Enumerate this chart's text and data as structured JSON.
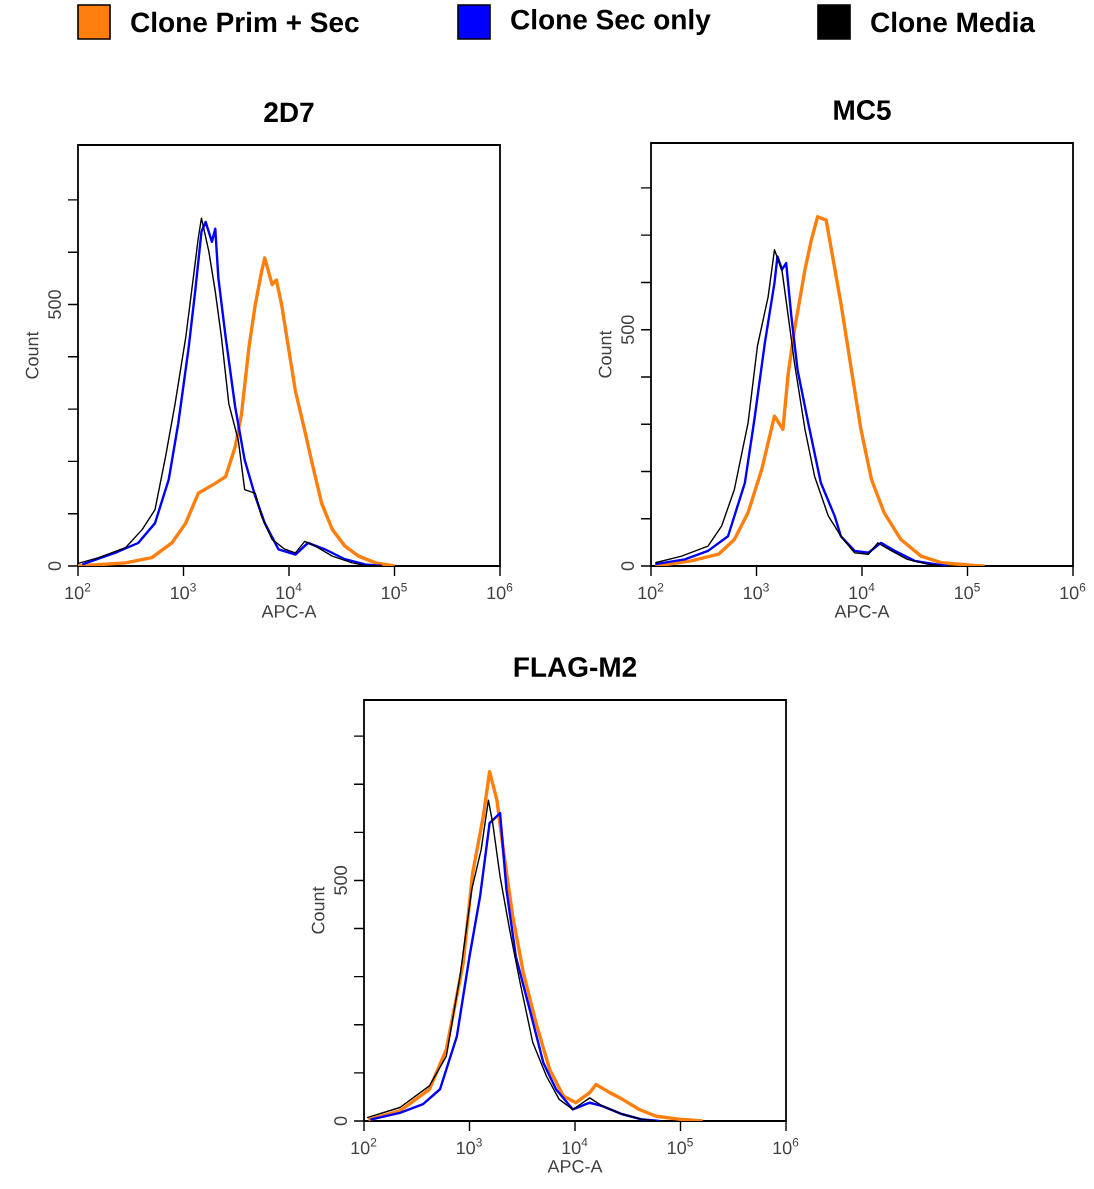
{
  "chart_data": [
    {
      "type": "line",
      "title": "2D7",
      "xlabel": "APC-A",
      "ylabel": "Count",
      "log": "x",
      "legend": "top",
      "xlim": [
        100,
        1000000
      ],
      "ylim": [
        0,
        805
      ],
      "xticks": [
        {
          "value": 100,
          "label": "10$^{2}$"
        },
        {
          "value": 1000,
          "label": "10$^{3}$"
        },
        {
          "value": 10000,
          "label": "10$^{4}$"
        },
        {
          "value": 100000,
          "label": "10$^{5}$"
        },
        {
          "value": 1000000,
          "label": "10$^{6}$"
        }
      ],
      "yticks": [
        0,
        {
          "value": 100,
          "label": null
        },
        {
          "value": 200,
          "label": null
        },
        {
          "value": 300,
          "label": null
        },
        {
          "value": 400,
          "label": null
        },
        500,
        {
          "value": 600,
          "label": null
        },
        {
          "value": 700,
          "label": null
        }
      ],
      "series": [
        {
          "name": "Clone Prim + Sec",
          "color": "#ff7f0e",
          "x": [
            100,
            282,
            501,
            776,
            1050,
            1380,
            2000,
            2510,
            3090,
            3550,
            4170,
            4790,
            5500,
            5890,
            6920,
            7590,
            8510,
            9770,
            11500,
            14100,
            16600,
            20400,
            25700,
            33900,
            45700,
            66100,
            100000
          ],
          "values": [
            0,
            6,
            16,
            44,
            82,
            139,
            158,
            171,
            228,
            291,
            418,
            500,
            563,
            589,
            538,
            547,
            500,
            424,
            335,
            259,
            196,
            120,
            70,
            38,
            19,
            6,
            0
          ]
        },
        {
          "name": "Clone Sec only",
          "color": "#0000ff",
          "x": [
            110,
            224,
            372,
            537,
            724,
            891,
            1120,
            1290,
            1480,
            1620,
            1860,
            2000,
            2140,
            2510,
            3090,
            3800,
            4790,
            5890,
            7940,
            11500,
            15100,
            21900,
            33900,
            52500,
            75900
          ],
          "values": [
            3,
            25,
            44,
            82,
            165,
            272,
            418,
            525,
            639,
            658,
            620,
            645,
            551,
            437,
            304,
            203,
            133,
            82,
            32,
            22,
            44,
            32,
            13,
            3,
            0
          ]
        },
        {
          "name": "Clone Media",
          "color": "#000000",
          "x": [
            100,
            157,
            282,
            407,
            537,
            676,
            832,
            1050,
            1260,
            1380,
            1480,
            1740,
            2000,
            2290,
            2690,
            3310,
            3800,
            4790,
            5500,
            6920,
            9120,
            11500,
            14100,
            17800,
            25700,
            39800,
            52500,
            75900
          ],
          "values": [
            5,
            16,
            35,
            70,
            108,
            209,
            310,
            437,
            563,
            627,
            665,
            601,
            525,
            437,
            310,
            240,
            146,
            139,
            95,
            51,
            32,
            25,
            47,
            38,
            19,
            6,
            1,
            0
          ]
        }
      ]
    },
    {
      "type": "line",
      "title": "MC5",
      "xlabel": "APC-A",
      "ylabel": "Count",
      "log": "x",
      "xlim": [
        100,
        1000000
      ],
      "ylim": [
        0,
        895
      ],
      "xticks": [
        {
          "value": 100,
          "label": "10$^{2}$"
        },
        {
          "value": 1000,
          "label": "10$^{3}$"
        },
        {
          "value": 10000,
          "label": "10$^{4}$"
        },
        {
          "value": 100000,
          "label": "10$^{5}$"
        },
        {
          "value": 1000000,
          "label": "10$^{6}$"
        }
      ],
      "yticks": [
        0,
        {
          "value": 100,
          "label": null
        },
        {
          "value": 200,
          "label": null
        },
        {
          "value": 300,
          "label": null
        },
        {
          "value": 400,
          "label": null
        },
        500,
        {
          "value": 600,
          "label": null
        },
        {
          "value": 700,
          "label": null
        },
        {
          "value": 800,
          "label": null
        }
      ],
      "series": [
        {
          "color": "#ff7f0e",
          "x": [
            110,
            240,
            437,
            617,
            832,
            1120,
            1480,
            1780,
            2000,
            2290,
            2880,
            3310,
            3800,
            4570,
            5130,
            6310,
            7940,
            9770,
            12300,
            16200,
            23400,
            36300,
            56200,
            115000,
            145000
          ],
          "values": [
            0,
            11,
            25,
            56,
            113,
            204,
            317,
            289,
            408,
            500,
            627,
            690,
            739,
            732,
            669,
            556,
            415,
            289,
            183,
            113,
            56,
            21,
            7,
            1,
            0
          ]
        },
        {
          "color": "#0000ff",
          "x": [
            110,
            209,
            347,
            537,
            776,
            955,
            1200,
            1480,
            1580,
            1740,
            1910,
            2140,
            2450,
            3090,
            4070,
            5500,
            6310,
            8510,
            11500,
            15100,
            20400,
            31600,
            49000,
            64600
          ],
          "values": [
            4,
            14,
            32,
            63,
            176,
            310,
            472,
            599,
            655,
            627,
            641,
            528,
            415,
            303,
            176,
            106,
            63,
            32,
            28,
            49,
            32,
            11,
            4,
            0
          ]
        },
        {
          "color": "#000000",
          "x": [
            110,
            195,
            347,
            468,
            617,
            832,
            1020,
            1290,
            1480,
            1740,
            2000,
            2290,
            2880,
            3550,
            4790,
            6310,
            8510,
            11500,
            14100,
            19100,
            26900,
            41700,
            56200
          ],
          "values": [
            7,
            21,
            42,
            85,
            162,
            303,
            465,
            570,
            669,
            627,
            528,
            430,
            289,
            190,
            106,
            63,
            28,
            25,
            49,
            32,
            14,
            4,
            0
          ]
        }
      ]
    },
    {
      "type": "line",
      "title": "FLAG-M2",
      "xlabel": "APC-A",
      "ylabel": "Count",
      "log": "x",
      "xlim": [
        100,
        1000000
      ],
      "ylim": [
        0,
        875
      ],
      "xticks": [
        {
          "value": 100,
          "label": "10$^{2}$"
        },
        {
          "value": 1000,
          "label": "10$^{3}$"
        },
        {
          "value": 10000,
          "label": "10$^{4}$"
        },
        {
          "value": 100000,
          "label": "10$^{5}$"
        },
        {
          "value": 1000000,
          "label": "10$^{6}$"
        }
      ],
      "yticks": [
        0,
        {
          "value": 100,
          "label": null
        },
        {
          "value": 200,
          "label": null
        },
        {
          "value": 300,
          "label": null
        },
        {
          "value": 400,
          "label": null
        },
        500,
        {
          "value": 600,
          "label": null
        },
        {
          "value": 700,
          "label": null
        },
        {
          "value": 800,
          "label": null
        }
      ],
      "series": [
        {
          "color": "#ff7f0e",
          "x": [
            110,
            219,
            417,
            603,
            871,
            1070,
            1350,
            1550,
            1820,
            2090,
            2570,
            3240,
            4270,
            5750,
            7760,
            10200,
            13800,
            15800,
            21400,
            28200,
            40700,
            58900,
            105000,
            162000
          ],
          "values": [
            3,
            21,
            66,
            149,
            328,
            515,
            633,
            726,
            667,
            564,
            425,
            308,
            204,
            107,
            52,
            38,
            59,
            76,
            59,
            45,
            24,
            10,
            3,
            0
          ]
        },
        {
          "color": "#0000ff",
          "x": [
            115,
            219,
            363,
            525,
            759,
            1000,
            1260,
            1550,
            1950,
            2240,
            2750,
            3720,
            5010,
            6610,
            9550,
            13800,
            18200,
            28200,
            43700,
            63100
          ],
          "values": [
            3,
            17,
            35,
            66,
            176,
            342,
            467,
            619,
            640,
            481,
            342,
            232,
            121,
            66,
            24,
            38,
            31,
            14,
            3,
            0
          ]
        },
        {
          "color": "#000000",
          "x": [
            107,
            219,
            417,
            603,
            813,
            1050,
            1290,
            1510,
            1660,
            1950,
            2400,
            3020,
            3980,
            5370,
            7080,
            9550,
            13800,
            18200,
            28200,
            43700,
            58900
          ],
          "values": [
            7,
            28,
            73,
            135,
            301,
            481,
            564,
            667,
            619,
            508,
            398,
            287,
            163,
            93,
            45,
            24,
            48,
            31,
            14,
            3,
            0
          ]
        }
      ]
    }
  ]
}
